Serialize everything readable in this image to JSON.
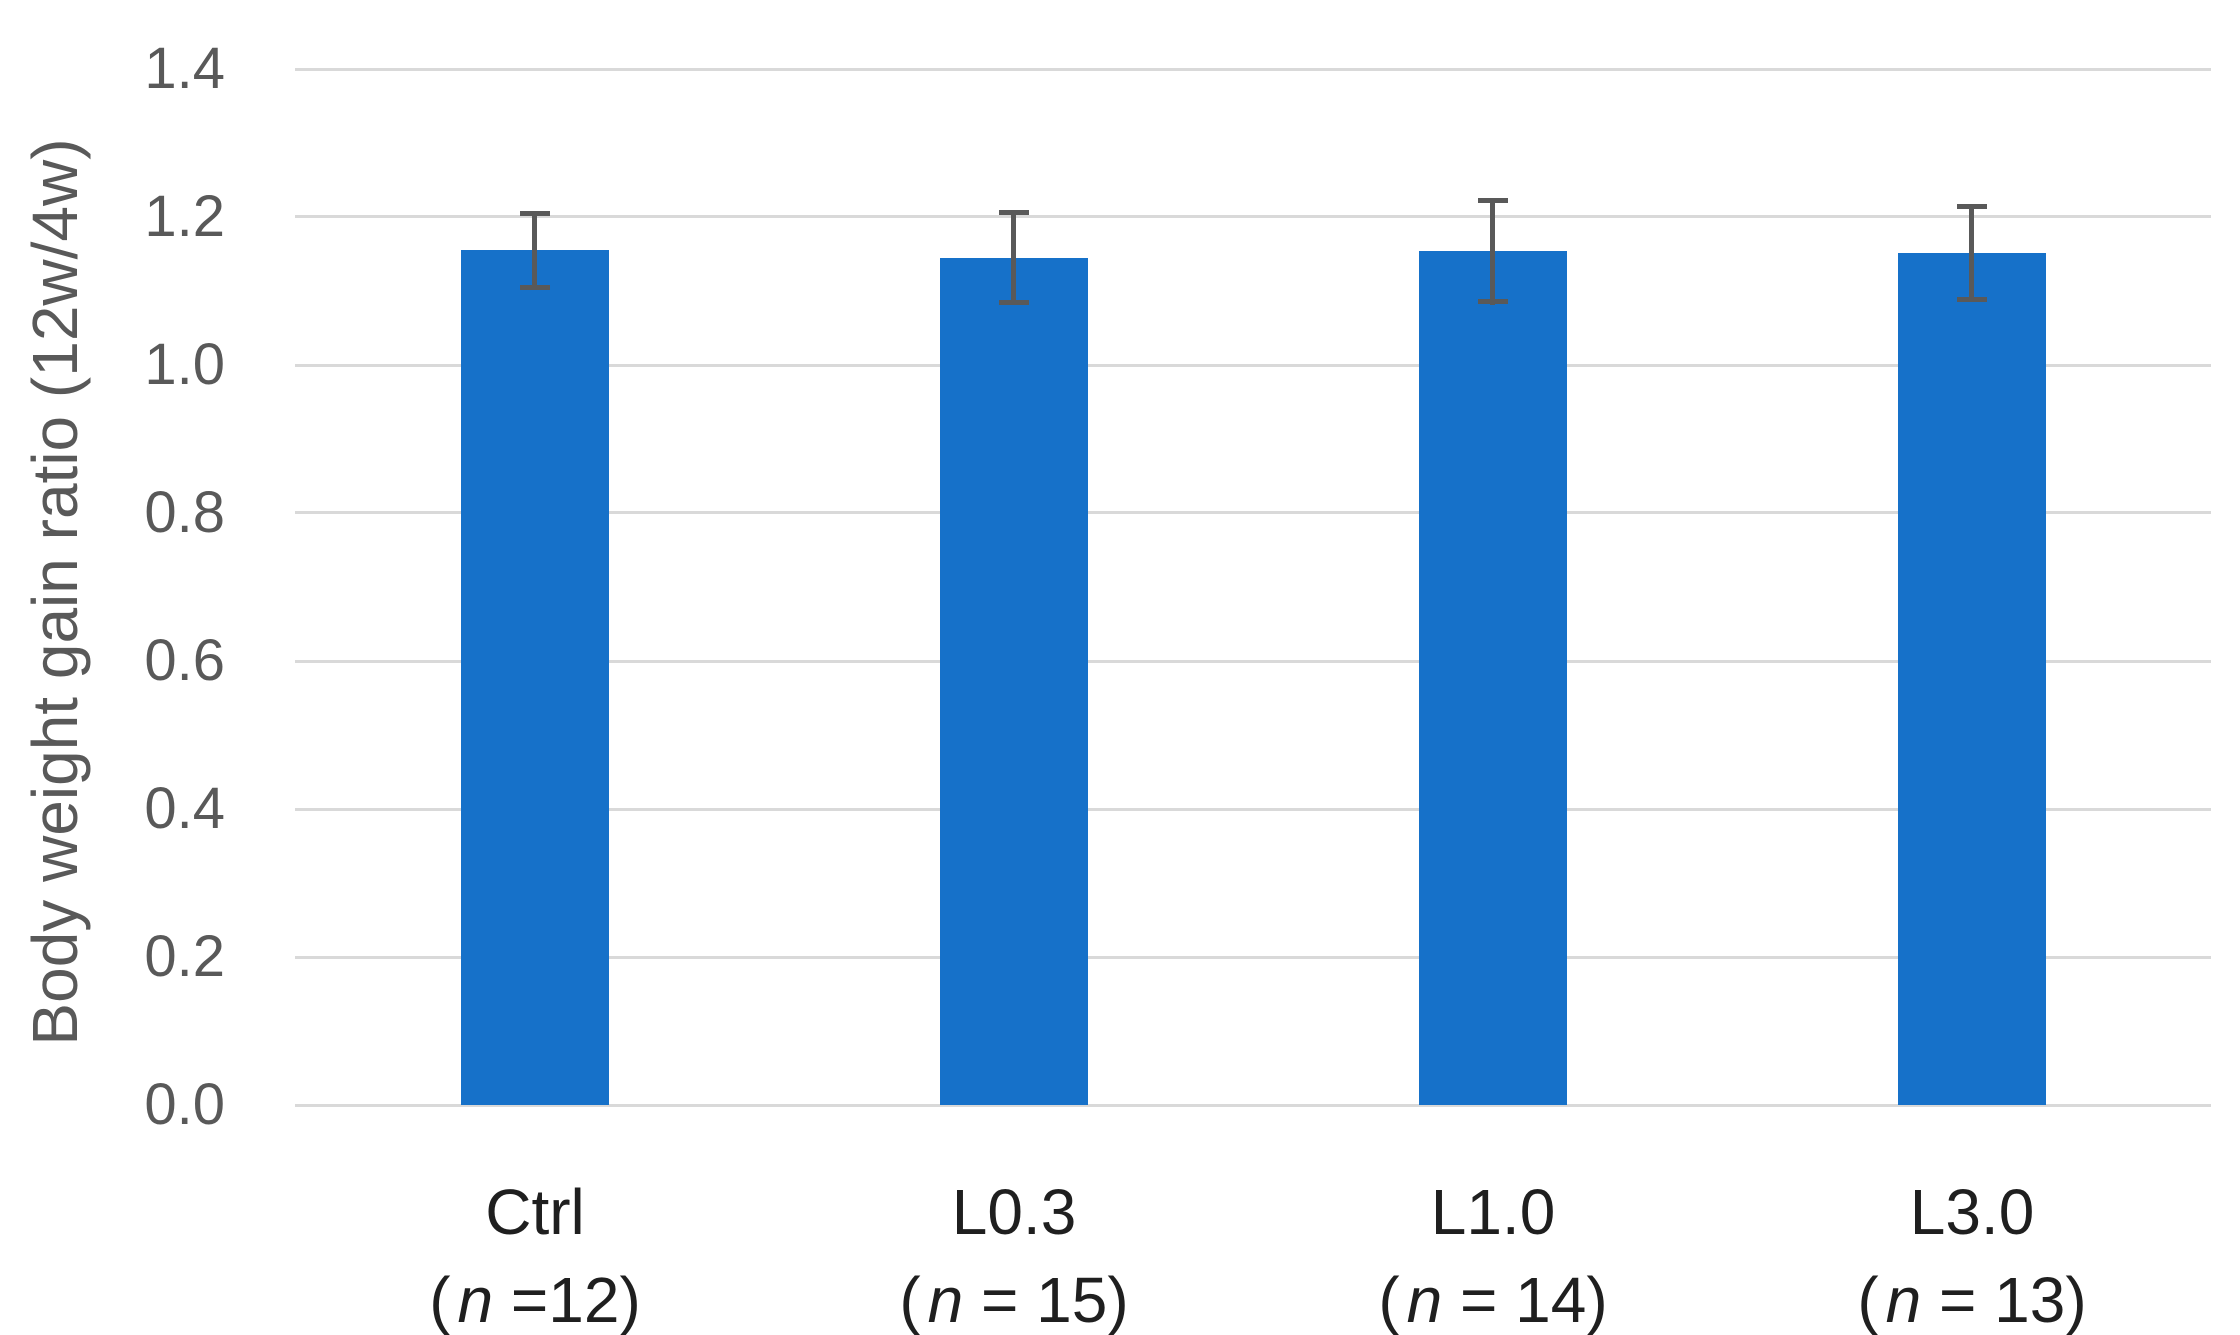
{
  "chart_data": {
    "type": "bar",
    "title": "",
    "xlabel": "",
    "ylabel": "Body weight gain ratio (12w/4w)",
    "ylim": [
      0,
      1.4
    ],
    "yticks": [
      "0.0",
      "0.2",
      "0.4",
      "0.6",
      "0.8",
      "1.0",
      "1.2",
      "1.4"
    ],
    "grid": true,
    "legend": false,
    "categories": [
      "Ctrl",
      "L0.3",
      "L1.0",
      "L3.0"
    ],
    "category_sublabels": [
      {
        "open": "(",
        "n": "n",
        "rest": " =12)"
      },
      {
        "open": "(",
        "n": "n",
        "rest": " = 15)"
      },
      {
        "open": "(",
        "n": "n",
        "rest": " = 14)"
      },
      {
        "open": "(",
        "n": "n",
        "rest": " = 13)"
      }
    ],
    "values": [
      1.155,
      1.145,
      1.154,
      1.151
    ],
    "errors": [
      0.053,
      0.064,
      0.072,
      0.066
    ],
    "colors": {
      "bar": "#1671C9",
      "error_bar": "#595959",
      "gridline": "#D9D9D9",
      "tick_label": "#595959",
      "axis_title": "#595959",
      "category_label": "#1F1F1F",
      "background": "#FFFFFF"
    }
  }
}
